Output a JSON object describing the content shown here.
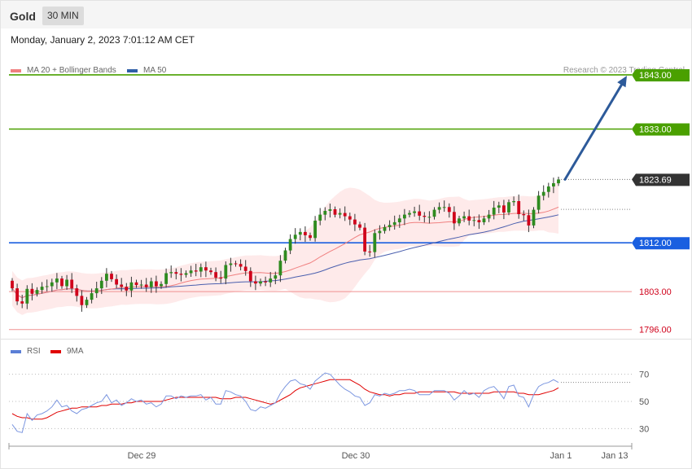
{
  "header": {
    "symbol": "Gold",
    "timeframe": "30 MIN"
  },
  "datetime": "Monday, January 2, 2023 7:01:12 AM CET",
  "legend": [
    {
      "label": "MA 20 + Bollinger Bands",
      "color": "#f08080"
    },
    {
      "label": "MA 50",
      "color": "#2f5fa7"
    }
  ],
  "credit": "Research © 2023 Trading Central",
  "rsi_legend": [
    {
      "label": "RSI",
      "color": "#5b7fd6"
    },
    {
      "label": "9MA",
      "color": "#e00000"
    }
  ],
  "colors": {
    "up": "#2e8b1f",
    "down": "#d0021b",
    "ma20": "#f08080",
    "ma50": "#4a5fae",
    "band": "#fde3e3",
    "arrow": "#2d5a9a",
    "resistance": "#4aa000",
    "pivot": "#1a5fe0",
    "support": "#f09090",
    "current": "#333333"
  },
  "chart_data": [
    {
      "type": "candlestick",
      "ylim": [
        1794,
        1846
      ],
      "x_ticks": [
        "Dec 29",
        "Dec 30",
        "Jan 1",
        "Jan 13"
      ],
      "current_price": "1823.69",
      "levels": [
        {
          "label": "1843.00",
          "value": 1843.0,
          "kind": "resistance"
        },
        {
          "label": "1833.00",
          "value": 1833.0,
          "kind": "resistance"
        },
        {
          "label": "1812.00",
          "value": 1812.0,
          "kind": "pivot"
        },
        {
          "label": "1803.00",
          "value": 1803.0,
          "kind": "support"
        },
        {
          "label": "1796.00",
          "value": 1796.0,
          "kind": "support"
        }
      ],
      "projection": {
        "from": 1823.7,
        "to": 1843.0
      },
      "closes": [
        1803.6,
        1801.2,
        1800.8,
        1803.5,
        1802.6,
        1803.3,
        1803.9,
        1804.0,
        1804.7,
        1805.4,
        1804.0,
        1805.2,
        1803.6,
        1802.2,
        1800.5,
        1801.5,
        1802.7,
        1803.6,
        1805.0,
        1806.3,
        1805.3,
        1804.3,
        1803.9,
        1803.2,
        1804.7,
        1804.2,
        1804.3,
        1803.8,
        1804.9,
        1804.0,
        1804.4,
        1806.4,
        1806.6,
        1806.3,
        1806.1,
        1806.4,
        1806.9,
        1806.7,
        1807.5,
        1806.9,
        1806.6,
        1805.6,
        1805.4,
        1807.9,
        1808.2,
        1808.1,
        1807.6,
        1806.8,
        1804.9,
        1804.5,
        1804.9,
        1804.7,
        1805.4,
        1806.0,
        1808.7,
        1810.6,
        1812.7,
        1813.5,
        1814.0,
        1813.4,
        1812.9,
        1816.1,
        1817.2,
        1817.9,
        1818.2,
        1817.2,
        1817.5,
        1816.9,
        1816.3,
        1815.4,
        1814.8,
        1810.4,
        1810.3,
        1813.8,
        1814.2,
        1814.9,
        1815.3,
        1815.8,
        1816.5,
        1817.2,
        1817.5,
        1817.8,
        1817.0,
        1816.8,
        1816.8,
        1818.1,
        1818.6,
        1818.6,
        1817.7,
        1815.6,
        1816.5,
        1816.9,
        1816.1,
        1816.2,
        1815.8,
        1816.5,
        1817.2,
        1818.5,
        1818.9,
        1817.6,
        1819.5,
        1819.7,
        1817.3,
        1817.1,
        1815.2,
        1818.1,
        1820.7,
        1821.4,
        1822.4,
        1823.0,
        1823.7
      ]
    },
    {
      "type": "line",
      "title": "RSI",
      "ylim": [
        20,
        80
      ],
      "y_ticks": [
        70,
        50,
        30
      ],
      "series": [
        {
          "name": "RSI",
          "values": [
            33,
            28,
            27,
            41,
            36,
            40,
            41,
            43,
            46,
            51,
            46,
            47,
            43,
            41,
            44,
            45,
            47,
            49,
            50,
            55,
            49,
            51,
            47,
            49,
            52,
            50,
            51,
            48,
            49,
            46,
            48,
            54,
            54,
            52,
            54,
            53,
            54,
            54,
            55,
            51,
            53,
            48,
            48,
            58,
            57,
            55,
            54,
            50,
            44,
            43,
            46,
            45,
            47,
            49,
            56,
            61,
            65,
            66,
            63,
            62,
            59,
            65,
            68,
            71,
            70,
            66,
            62,
            59,
            57,
            54,
            53,
            47,
            49,
            55,
            54,
            56,
            55,
            56,
            58,
            58,
            59,
            58,
            55,
            55,
            55,
            58,
            58,
            58,
            56,
            51,
            54,
            58,
            55,
            56,
            53,
            58,
            60,
            61,
            57,
            52,
            61,
            62,
            54,
            53,
            46,
            55,
            61,
            63,
            64,
            66,
            64
          ]
        },
        {
          "name": "9MA",
          "values": [
            41,
            39,
            38,
            38,
            37,
            37,
            37,
            38,
            40,
            42,
            43,
            44,
            45,
            45,
            46,
            46,
            46,
            46,
            47,
            47,
            48,
            48,
            48,
            49,
            49,
            50,
            50,
            50,
            50,
            50,
            50,
            51,
            52,
            53,
            53,
            53,
            53,
            53,
            53,
            53,
            53,
            53,
            52,
            52,
            52,
            53,
            53,
            53,
            52,
            51,
            50,
            49,
            48,
            49,
            51,
            53,
            55,
            58,
            60,
            61,
            62,
            63,
            64,
            65,
            66,
            66,
            66,
            66,
            66,
            64,
            62,
            59,
            57,
            56,
            55,
            55,
            54,
            55,
            55,
            56,
            56,
            56,
            57,
            57,
            57,
            57,
            57,
            57,
            57,
            57,
            56,
            56,
            56,
            56,
            56,
            56,
            56,
            57,
            57,
            57,
            57,
            57,
            56,
            56,
            55,
            55,
            55,
            56,
            57,
            58,
            60
          ]
        }
      ],
      "current_label": ""
    }
  ]
}
